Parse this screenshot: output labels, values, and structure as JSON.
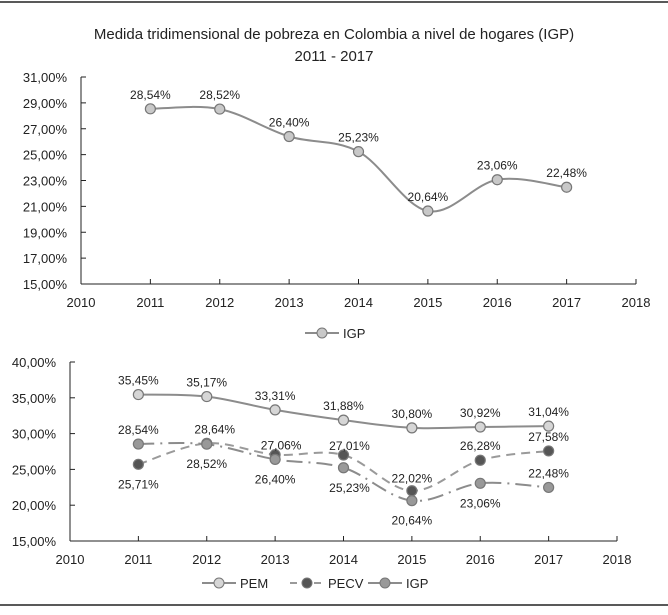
{
  "chart_data": [
    {
      "type": "line",
      "title": "Medida tridimensional de pobreza en Colombia a nivel de hogares (IGP)",
      "subtitle": "2011 - 2017",
      "x": [
        2011,
        2012,
        2013,
        2014,
        2015,
        2016,
        2017
      ],
      "xticks": [
        "2010",
        "2011",
        "2012",
        "2013",
        "2014",
        "2015",
        "2016",
        "2017",
        "2018"
      ],
      "xlim": [
        2010,
        2018
      ],
      "yticks": [
        "15,00%",
        "17,00%",
        "19,00%",
        "21,00%",
        "23,00%",
        "25,00%",
        "27,00%",
        "29,00%",
        "31,00%"
      ],
      "ylim": [
        15,
        31
      ],
      "grid": false,
      "legend_position": "bottom",
      "series": [
        {
          "name": "IGP",
          "values": [
            28.54,
            28.52,
            26.4,
            25.23,
            20.64,
            23.06,
            22.48
          ],
          "labels": [
            "28,54%",
            "28,52%",
            "26,40%",
            "25,23%",
            "20,64%",
            "23,06%",
            "22,48%"
          ],
          "color": "#8c8c8c",
          "marker_fill": "#c8c8c8",
          "style": "solid-smooth"
        }
      ]
    },
    {
      "type": "line",
      "x": [
        2011,
        2012,
        2013,
        2014,
        2015,
        2016,
        2017
      ],
      "xticks": [
        "2010",
        "2011",
        "2012",
        "2013",
        "2014",
        "2015",
        "2016",
        "2017",
        "2018"
      ],
      "xlim": [
        2010,
        2018
      ],
      "yticks": [
        "15,00%",
        "20,00%",
        "25,00%",
        "30,00%",
        "35,00%",
        "40,00%"
      ],
      "ylim": [
        15,
        40
      ],
      "grid": false,
      "legend_position": "bottom",
      "series": [
        {
          "name": "PEM",
          "values": [
            35.45,
            35.17,
            33.31,
            31.88,
            30.8,
            30.92,
            31.04
          ],
          "labels": [
            "35,45%",
            "35,17%",
            "33,31%",
            "31,88%",
            "30,80%",
            "30,92%",
            "31,04%"
          ],
          "color": "#8c8c8c",
          "marker_fill": "#d6d6d6",
          "style": "solid"
        },
        {
          "name": "PECV",
          "values": [
            25.71,
            28.64,
            27.06,
            27.01,
            22.02,
            26.28,
            27.58
          ],
          "labels": [
            "25,71%",
            "28,64%",
            "27,06%",
            "27,01%",
            "22,02%",
            "26,28%",
            "27,58%"
          ],
          "color": "#9a9a9a",
          "marker_fill": "#555555",
          "style": "dashed"
        },
        {
          "name": "IGP",
          "values": [
            28.54,
            28.52,
            26.4,
            25.23,
            20.64,
            23.06,
            22.48
          ],
          "labels": [
            "28,54%",
            "28,52%",
            "26,40%",
            "25,23%",
            "20,64%",
            "23,06%",
            "22,48%"
          ],
          "color": "#8c8c8c",
          "marker_fill": "#999999",
          "style": "dash-dot"
        }
      ]
    }
  ]
}
